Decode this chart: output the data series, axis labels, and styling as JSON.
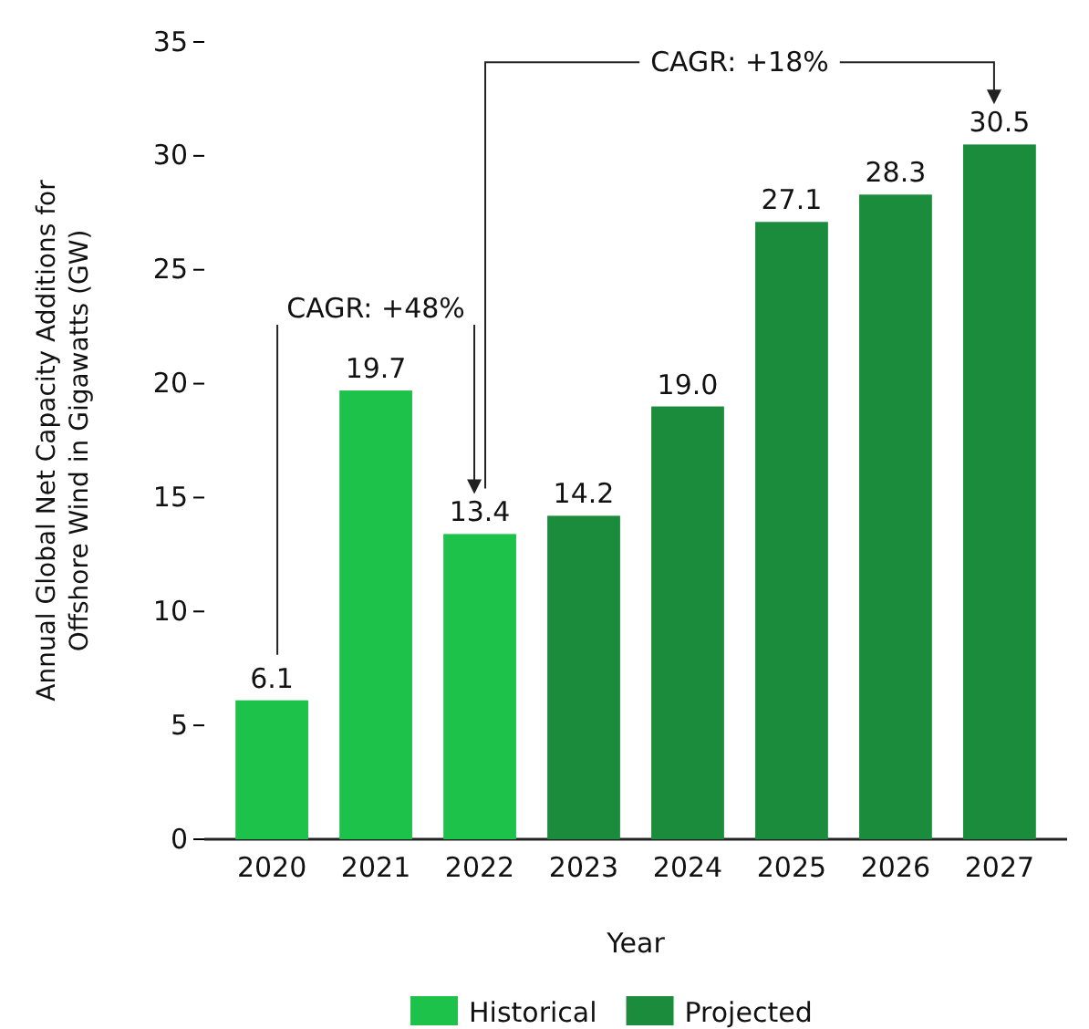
{
  "chart_data": {
    "type": "bar",
    "xlabel": "Year",
    "ylabel": "Annual Global Net Capacity Additions for Offshore Wind in Gigawatts (GW)",
    "categories": [
      "2020",
      "2021",
      "2022",
      "2023",
      "2024",
      "2025",
      "2026",
      "2027"
    ],
    "series": [
      {
        "name": "Historical",
        "color": "#1dc24b",
        "values": [
          6.1,
          19.7,
          13.4,
          null,
          null,
          null,
          null,
          null
        ]
      },
      {
        "name": "Projected",
        "color": "#1a8c3c",
        "values": [
          null,
          null,
          null,
          14.2,
          19.0,
          27.1,
          28.3,
          30.5
        ],
        "value_labels": [
          null,
          null,
          null,
          "14.2",
          "19.0",
          "27.1",
          "28.3",
          "30.5"
        ]
      }
    ],
    "value_labels": [
      "6.1",
      "19.7",
      "13.4",
      null,
      null,
      null,
      null,
      null
    ],
    "annotations": [
      "CAGR: +48%",
      "CAGR: +18%"
    ],
    "ylim": [
      0,
      35
    ],
    "yticks": [
      0,
      5,
      10,
      15,
      20,
      25,
      30,
      35
    ],
    "grid": false,
    "legend": "bottom"
  }
}
